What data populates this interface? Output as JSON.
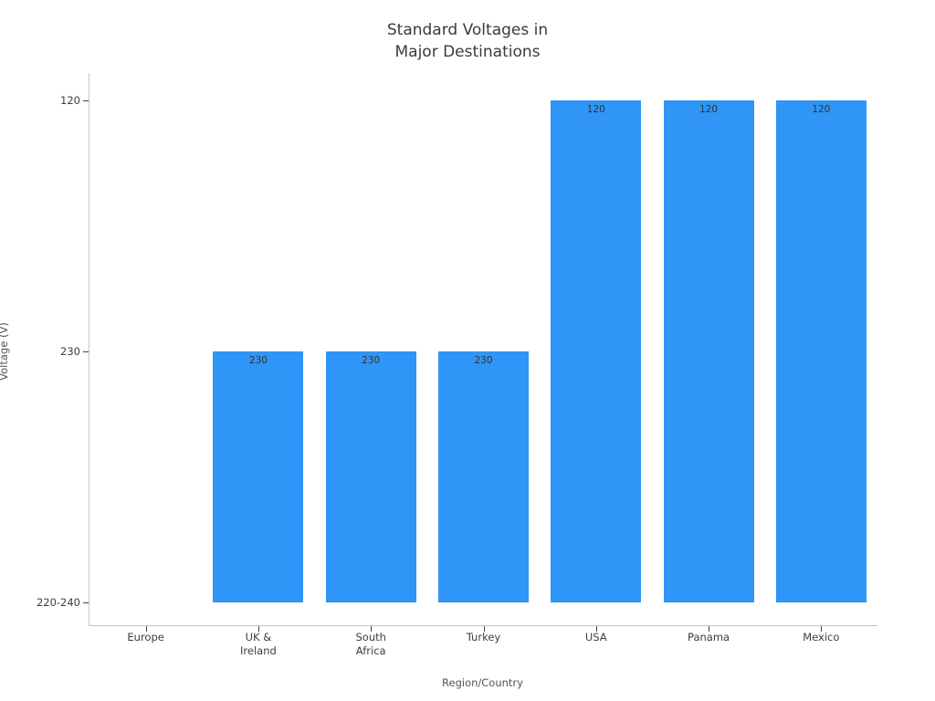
{
  "chart_data": {
    "type": "bar",
    "title": "Standard Voltages in Major Destinations",
    "title_display": "Standard Voltages in\nMajor Destinations",
    "xlabel": "Region/Country",
    "ylabel": "Voltage (V)",
    "categories": [
      "Europe",
      "UK &\nIreland",
      "South\nAfrica",
      "Turkey",
      "USA",
      "Panama",
      "Mexico"
    ],
    "values": [
      "220-240",
      "230",
      "230",
      "230",
      "120",
      "120",
      "120"
    ],
    "value_levels": [
      0,
      1,
      1,
      1,
      2,
      2,
      2
    ],
    "bar_labels": [
      "",
      "230",
      "230",
      "230",
      "120",
      "120",
      "120"
    ],
    "y_tick_labels": [
      "220-240",
      "230",
      "120"
    ],
    "bar_color": "#2f95f6",
    "grid": false,
    "legend": "none",
    "background": "#ffffff"
  }
}
